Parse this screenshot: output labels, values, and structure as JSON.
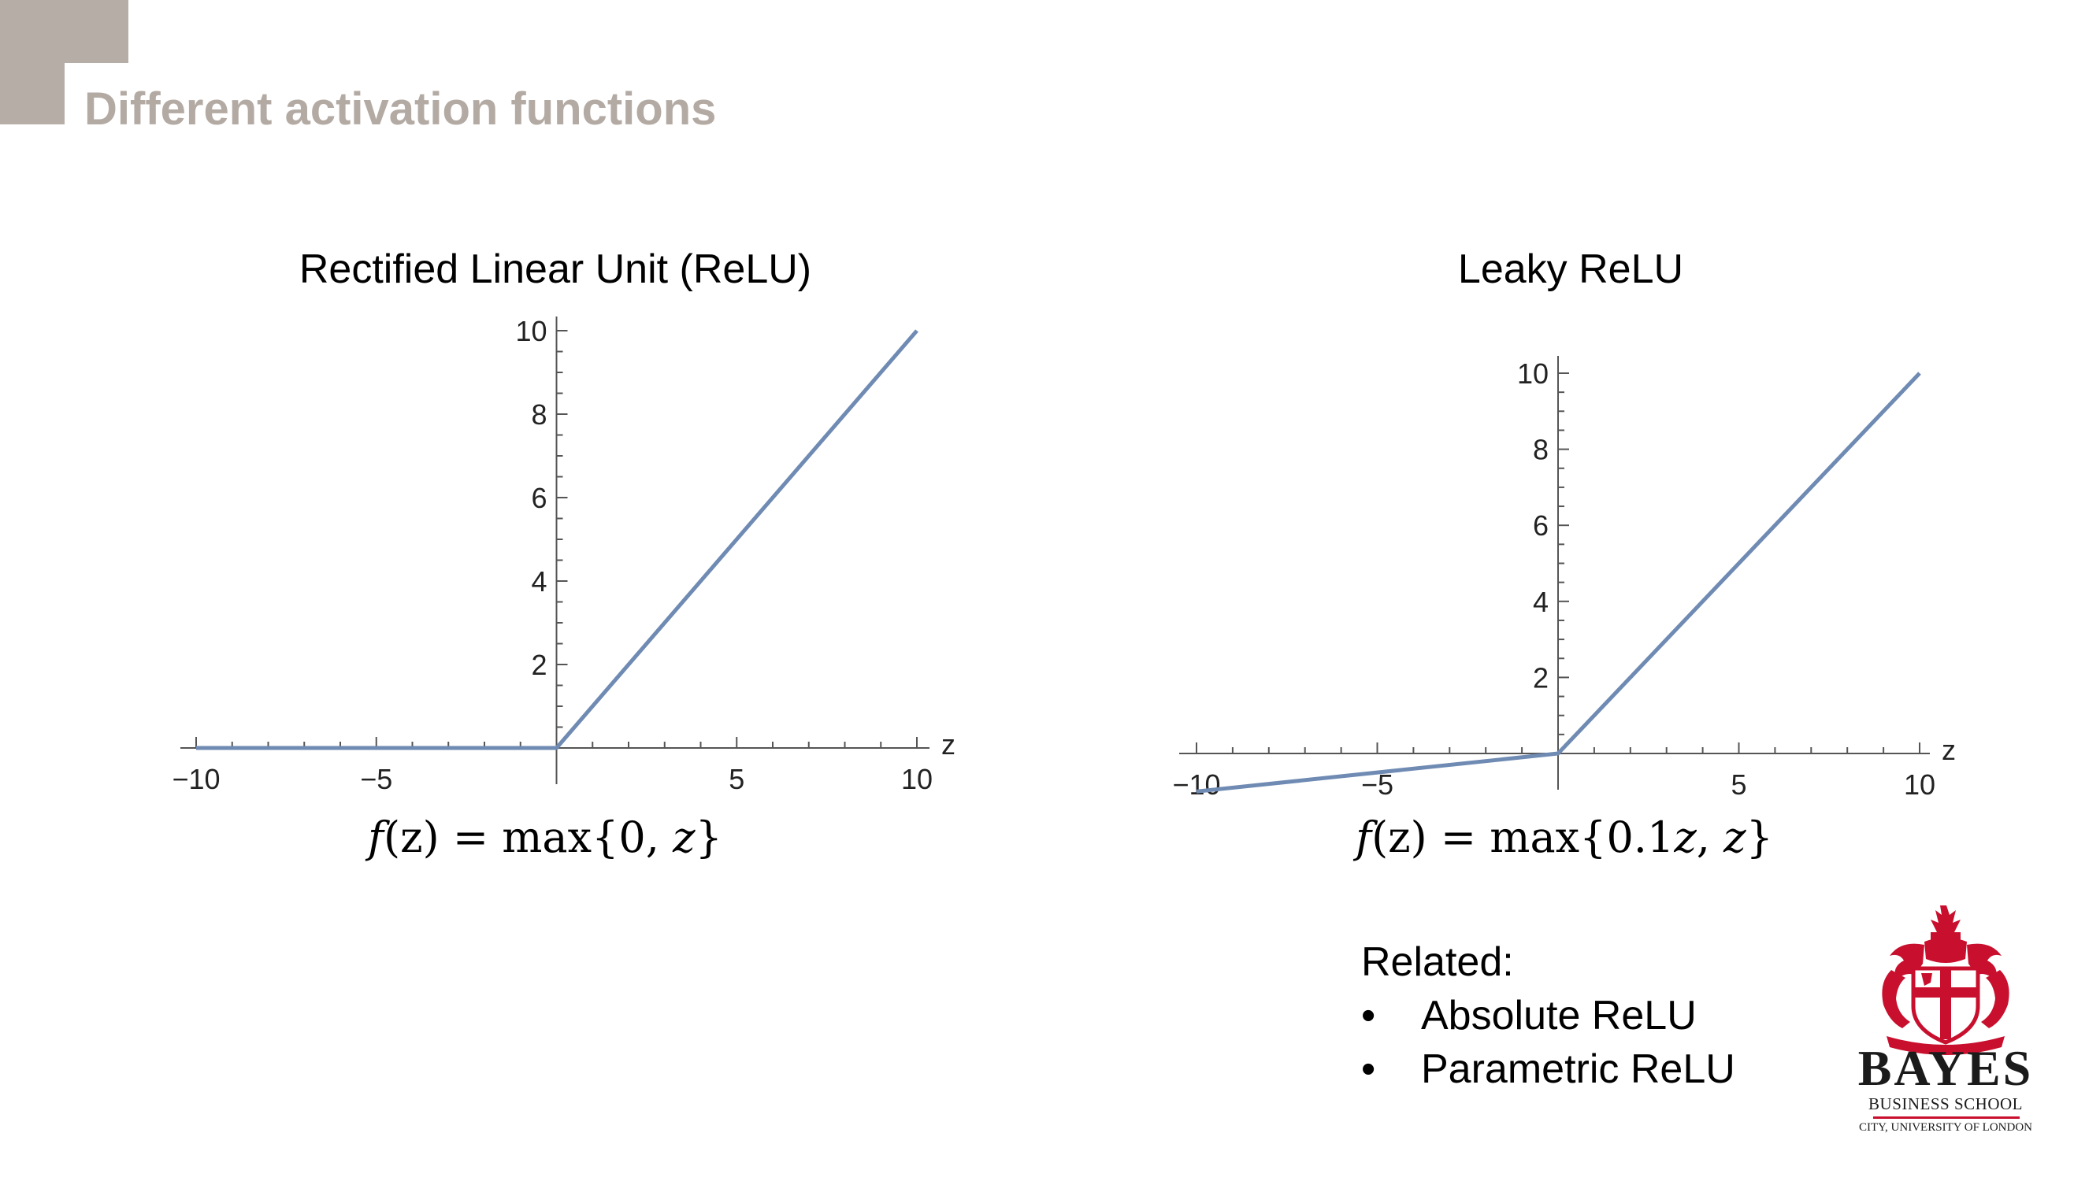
{
  "slide": {
    "title": "Different activation functions"
  },
  "charts": [
    {
      "title": "Rectified Linear Unit (ReLU)",
      "formula": {
        "prefix": "f",
        "arg": "(z)",
        "eq": " = max{0, ",
        "var": "z",
        "suffix": "}"
      }
    },
    {
      "title": "Leaky ReLU",
      "formula": {
        "prefix": "f",
        "arg": "(z)",
        "eq": " = max{0.1",
        "var": "z",
        "mid": ", ",
        "var2": "z",
        "suffix": "}"
      }
    }
  ],
  "chart_data": [
    {
      "type": "line",
      "title": "Rectified Linear Unit (ReLU)",
      "xlabel": "z",
      "ylabel": "",
      "xlim": [
        -10,
        10
      ],
      "ylim": [
        0,
        10
      ],
      "xticks": [
        -10,
        -5,
        5,
        10
      ],
      "yticks": [
        2,
        4,
        6,
        8,
        10
      ],
      "x_tick_labels": [
        "−10",
        "−5",
        "5",
        "10"
      ],
      "y_tick_labels": [
        "2",
        "4",
        "6",
        "8",
        "10"
      ],
      "grid": false,
      "line_color": "#6f8bb3",
      "series": [
        {
          "x": [
            -10,
            0,
            10
          ],
          "y": [
            0,
            0,
            10
          ]
        }
      ]
    },
    {
      "type": "line",
      "title": "Leaky ReLU",
      "xlabel": "z",
      "ylabel": "",
      "xlim": [
        -10,
        10
      ],
      "ylim": [
        -1,
        10
      ],
      "xticks": [
        -10,
        -5,
        5,
        10
      ],
      "yticks": [
        2,
        4,
        6,
        8,
        10
      ],
      "x_tick_labels": [
        "−10",
        "−5",
        "5",
        "10"
      ],
      "y_tick_labels": [
        "2",
        "4",
        "6",
        "8",
        "10"
      ],
      "grid": false,
      "line_color": "#6f8bb3",
      "series": [
        {
          "x": [
            -10,
            0,
            10
          ],
          "y": [
            -1,
            0,
            10
          ]
        }
      ]
    }
  ],
  "related": {
    "heading": "Related:",
    "bullet": "•",
    "items": [
      "Absolute ReLU",
      "Parametric ReLU"
    ]
  },
  "logo": {
    "name": "BAYES",
    "line1": "BUSINESS SCHOOL",
    "line2": "CITY, UNIVERSITY OF LONDON",
    "color": "#c8102e"
  }
}
